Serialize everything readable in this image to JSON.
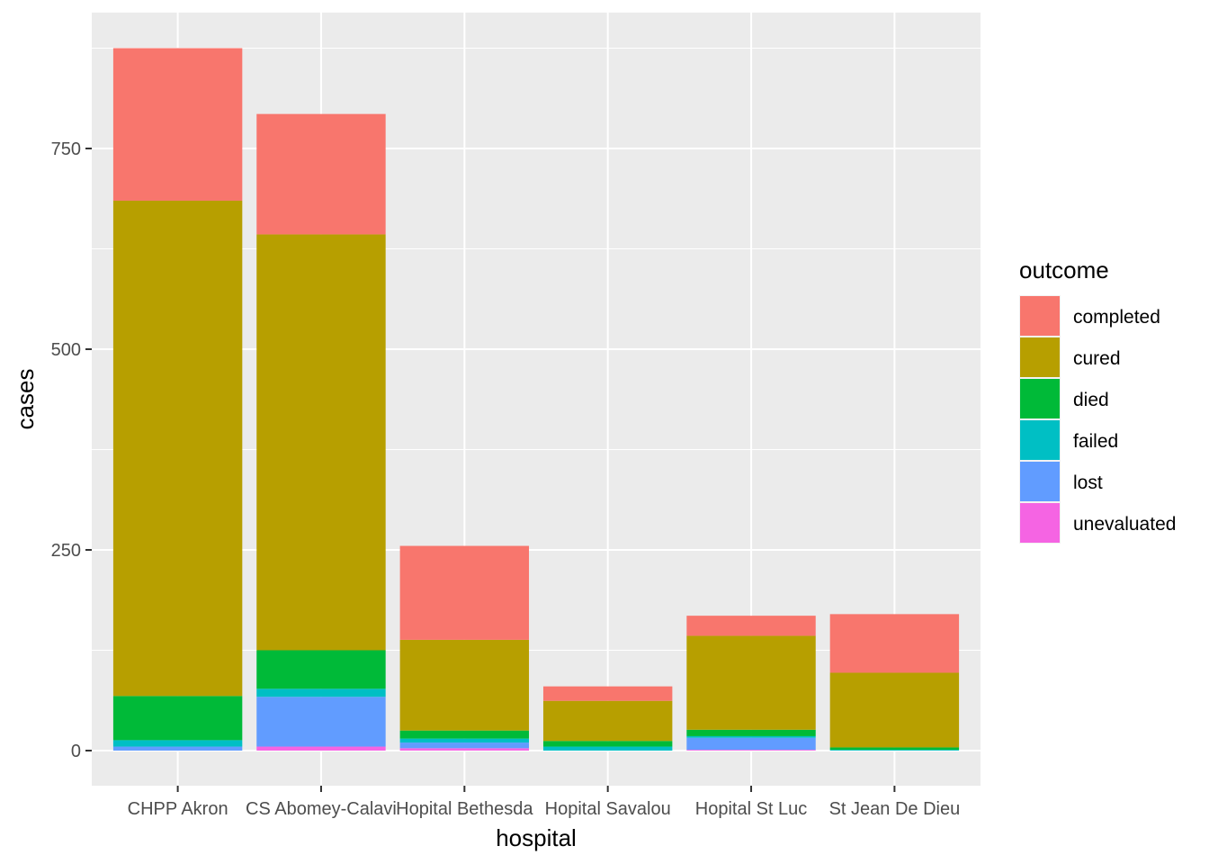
{
  "chart_data": {
    "type": "bar",
    "stacked": true,
    "xlabel": "hospital",
    "ylabel": "cases",
    "ylim": [
      0,
      1000
    ],
    "y_ticks": [
      0,
      250,
      500,
      750
    ],
    "grid": true,
    "legend": {
      "title": "outcome",
      "placement": "right"
    },
    "categories": [
      "CHPP Akron",
      "CS Abomey-Calavi",
      "Hopital Bethesda",
      "Hopital Savalou",
      "Hopital St Luc",
      "St Jean De Dieu"
    ],
    "series": [
      {
        "name": "unevaluated",
        "color": "#F564E3",
        "values": [
          0,
          5,
          3,
          0,
          1,
          0
        ]
      },
      {
        "name": "lost",
        "color": "#619CFF",
        "values": [
          5,
          62,
          7,
          0,
          15,
          0
        ]
      },
      {
        "name": "failed",
        "color": "#00BFC4",
        "values": [
          8,
          10,
          5,
          5,
          2,
          1
        ]
      },
      {
        "name": "died",
        "color": "#00BA38",
        "values": [
          55,
          48,
          10,
          7,
          8,
          3
        ]
      },
      {
        "name": "cured",
        "color": "#B79F00",
        "values": [
          617,
          518,
          113,
          50,
          117,
          93
        ]
      },
      {
        "name": "completed",
        "color": "#F8766D",
        "values": [
          190,
          150,
          117,
          18,
          25,
          73
        ]
      }
    ],
    "legend_order": [
      "completed",
      "cured",
      "died",
      "failed",
      "lost",
      "unevaluated"
    ]
  }
}
